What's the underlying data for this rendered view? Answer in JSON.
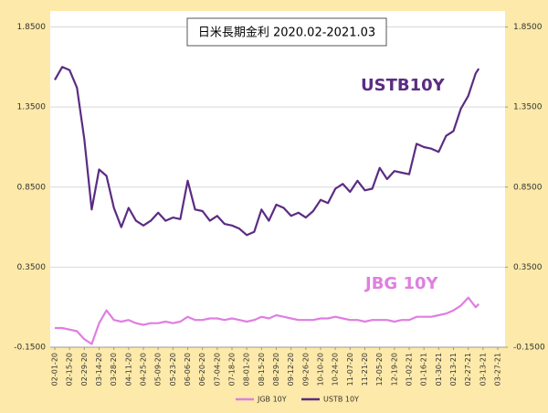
{
  "chart_data": {
    "type": "line",
    "title": "日米長期金利 2020.02-2021.03",
    "annotations": [
      "USTB10Y",
      "JBG 10Y"
    ],
    "x": [
      "02-01-20",
      "02-08-20",
      "02-15-20",
      "02-22-20",
      "02-29-20",
      "03-07-20",
      "03-14-20",
      "03-21-20",
      "03-28-20",
      "04-04-20",
      "04-11-20",
      "04-18-20",
      "04-25-20",
      "05-02-20",
      "05-09-20",
      "05-16-20",
      "05-23-20",
      "05-30-20",
      "06-06-20",
      "06-13-20",
      "06-20-20",
      "06-27-20",
      "07-04-20",
      "07-11-20",
      "07-18-20",
      "07-25-20",
      "08-01-20",
      "08-08-20",
      "08-15-20",
      "08-22-20",
      "08-29-20",
      "09-05-20",
      "09-12-20",
      "09-19-20",
      "09-26-20",
      "10-03-20",
      "10-10-20",
      "10-17-20",
      "10-24-20",
      "10-31-20",
      "11-07-20",
      "11-14-20",
      "11-21-20",
      "11-28-20",
      "12-05-20",
      "12-12-20",
      "12-19-20",
      "12-26-20",
      "01-02-21",
      "01-09-21",
      "01-16-21",
      "01-23-21",
      "01-30-21",
      "02-06-21",
      "02-13-21",
      "02-20-21",
      "02-27-21",
      "03-06-21",
      "03-09-21"
    ],
    "series": [
      {
        "name": "JGB 10Y",
        "color": "#e07ee0",
        "values": [
          -0.03,
          -0.03,
          -0.04,
          -0.05,
          -0.1,
          -0.13,
          0.0,
          0.08,
          0.02,
          0.01,
          0.02,
          0.0,
          -0.01,
          0.0,
          0.0,
          0.01,
          0.0,
          0.01,
          0.04,
          0.02,
          0.02,
          0.03,
          0.03,
          0.02,
          0.03,
          0.02,
          0.01,
          0.02,
          0.04,
          0.03,
          0.05,
          0.04,
          0.03,
          0.02,
          0.02,
          0.02,
          0.03,
          0.03,
          0.04,
          0.03,
          0.02,
          0.02,
          0.01,
          0.02,
          0.02,
          0.02,
          0.01,
          0.02,
          0.02,
          0.04,
          0.04,
          0.04,
          0.05,
          0.06,
          0.08,
          0.11,
          0.16,
          0.1,
          0.12
        ]
      },
      {
        "name": "USTB 10Y",
        "color": "#5b2c83",
        "values": [
          1.52,
          1.6,
          1.58,
          1.47,
          1.15,
          0.71,
          0.96,
          0.92,
          0.72,
          0.6,
          0.72,
          0.64,
          0.61,
          0.64,
          0.69,
          0.64,
          0.66,
          0.65,
          0.89,
          0.71,
          0.7,
          0.64,
          0.67,
          0.62,
          0.61,
          0.59,
          0.55,
          0.57,
          0.71,
          0.64,
          0.74,
          0.72,
          0.67,
          0.69,
          0.66,
          0.7,
          0.77,
          0.75,
          0.84,
          0.87,
          0.82,
          0.89,
          0.83,
          0.84,
          0.97,
          0.9,
          0.95,
          0.94,
          0.93,
          1.12,
          1.1,
          1.09,
          1.07,
          1.17,
          1.2,
          1.34,
          1.42,
          1.56,
          1.59
        ]
      }
    ],
    "xlim": [
      "02-01-20",
      "03-27-21"
    ],
    "xticks": [
      "02-01-20",
      "02-15-20",
      "02-29-20",
      "03-14-20",
      "03-28-20",
      "04-11-20",
      "04-25-20",
      "05-09-20",
      "05-23-20",
      "06-06-20",
      "06-20-20",
      "07-04-20",
      "07-18-20",
      "08-01-20",
      "08-15-20",
      "08-29-20",
      "09-12-20",
      "09-26-20",
      "10-10-20",
      "10-24-20",
      "11-07-20",
      "11-21-20",
      "12-05-20",
      "12-19-20",
      "01-02-21",
      "01-16-21",
      "01-30-21",
      "02-13-21",
      "02-27-21",
      "03-13-21",
      "03-27-21"
    ],
    "ylim": [
      -0.15,
      1.95
    ],
    "yticks": [
      {
        "value": -0.15,
        "label": "-0.1500"
      },
      {
        "value": 0.35,
        "label": "0.3500"
      },
      {
        "value": 0.85,
        "label": "0.8500"
      },
      {
        "value": 1.35,
        "label": "1.3500"
      },
      {
        "value": 1.85,
        "label": "1.8500"
      }
    ],
    "y2lim": [
      -0.15,
      1.95
    ],
    "y2ticks": [
      {
        "value": -0.15,
        "label": "-0.1500"
      },
      {
        "value": 0.35,
        "label": "0.3500"
      },
      {
        "value": 0.85,
        "label": "0.8500"
      },
      {
        "value": 1.35,
        "label": "1.3500"
      },
      {
        "value": 1.85,
        "label": "1.8500"
      }
    ],
    "grid": true,
    "legend": "bottom"
  }
}
